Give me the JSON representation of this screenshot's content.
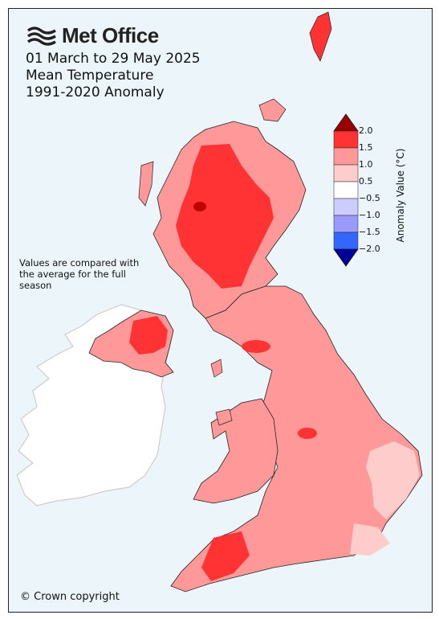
{
  "header": {
    "logo_text": "Met Office",
    "title_line1": "01 March to 29 May 2025",
    "title_line2": "Mean Temperature",
    "title_line3": "1991-2020 Anomaly"
  },
  "note": "Values are compared with the average for the full season",
  "copyright": "© Crown copyright",
  "legend": {
    "label": "Anomaly Value (°C)",
    "ticks": [
      "2.0",
      "1.5",
      "1.0",
      "0.5",
      "−0.5",
      "−1.0",
      "−1.5",
      "−2.0"
    ],
    "bands": [
      {
        "range": "1.5 to 2.0",
        "color": "#ff3333"
      },
      {
        "range": "1.0 to 1.5",
        "color": "#ff9999"
      },
      {
        "range": "0.5 to 1.0",
        "color": "#ffcccc"
      },
      {
        "range": "-0.5 to 0.5",
        "color": "#ffffff"
      },
      {
        "range": "-1.0 to -0.5",
        "color": "#ccccff"
      },
      {
        "range": "-1.5 to -1.0",
        "color": "#9999ff"
      },
      {
        "range": "-2.0 to -1.5",
        "color": "#3366ff"
      }
    ],
    "over_color": "#990000",
    "under_color": "#000099"
  },
  "map_colors": {
    "sea": "#ecf6fa",
    "ireland": "#ffffff",
    "ireland_border": "#cccccc"
  }
}
